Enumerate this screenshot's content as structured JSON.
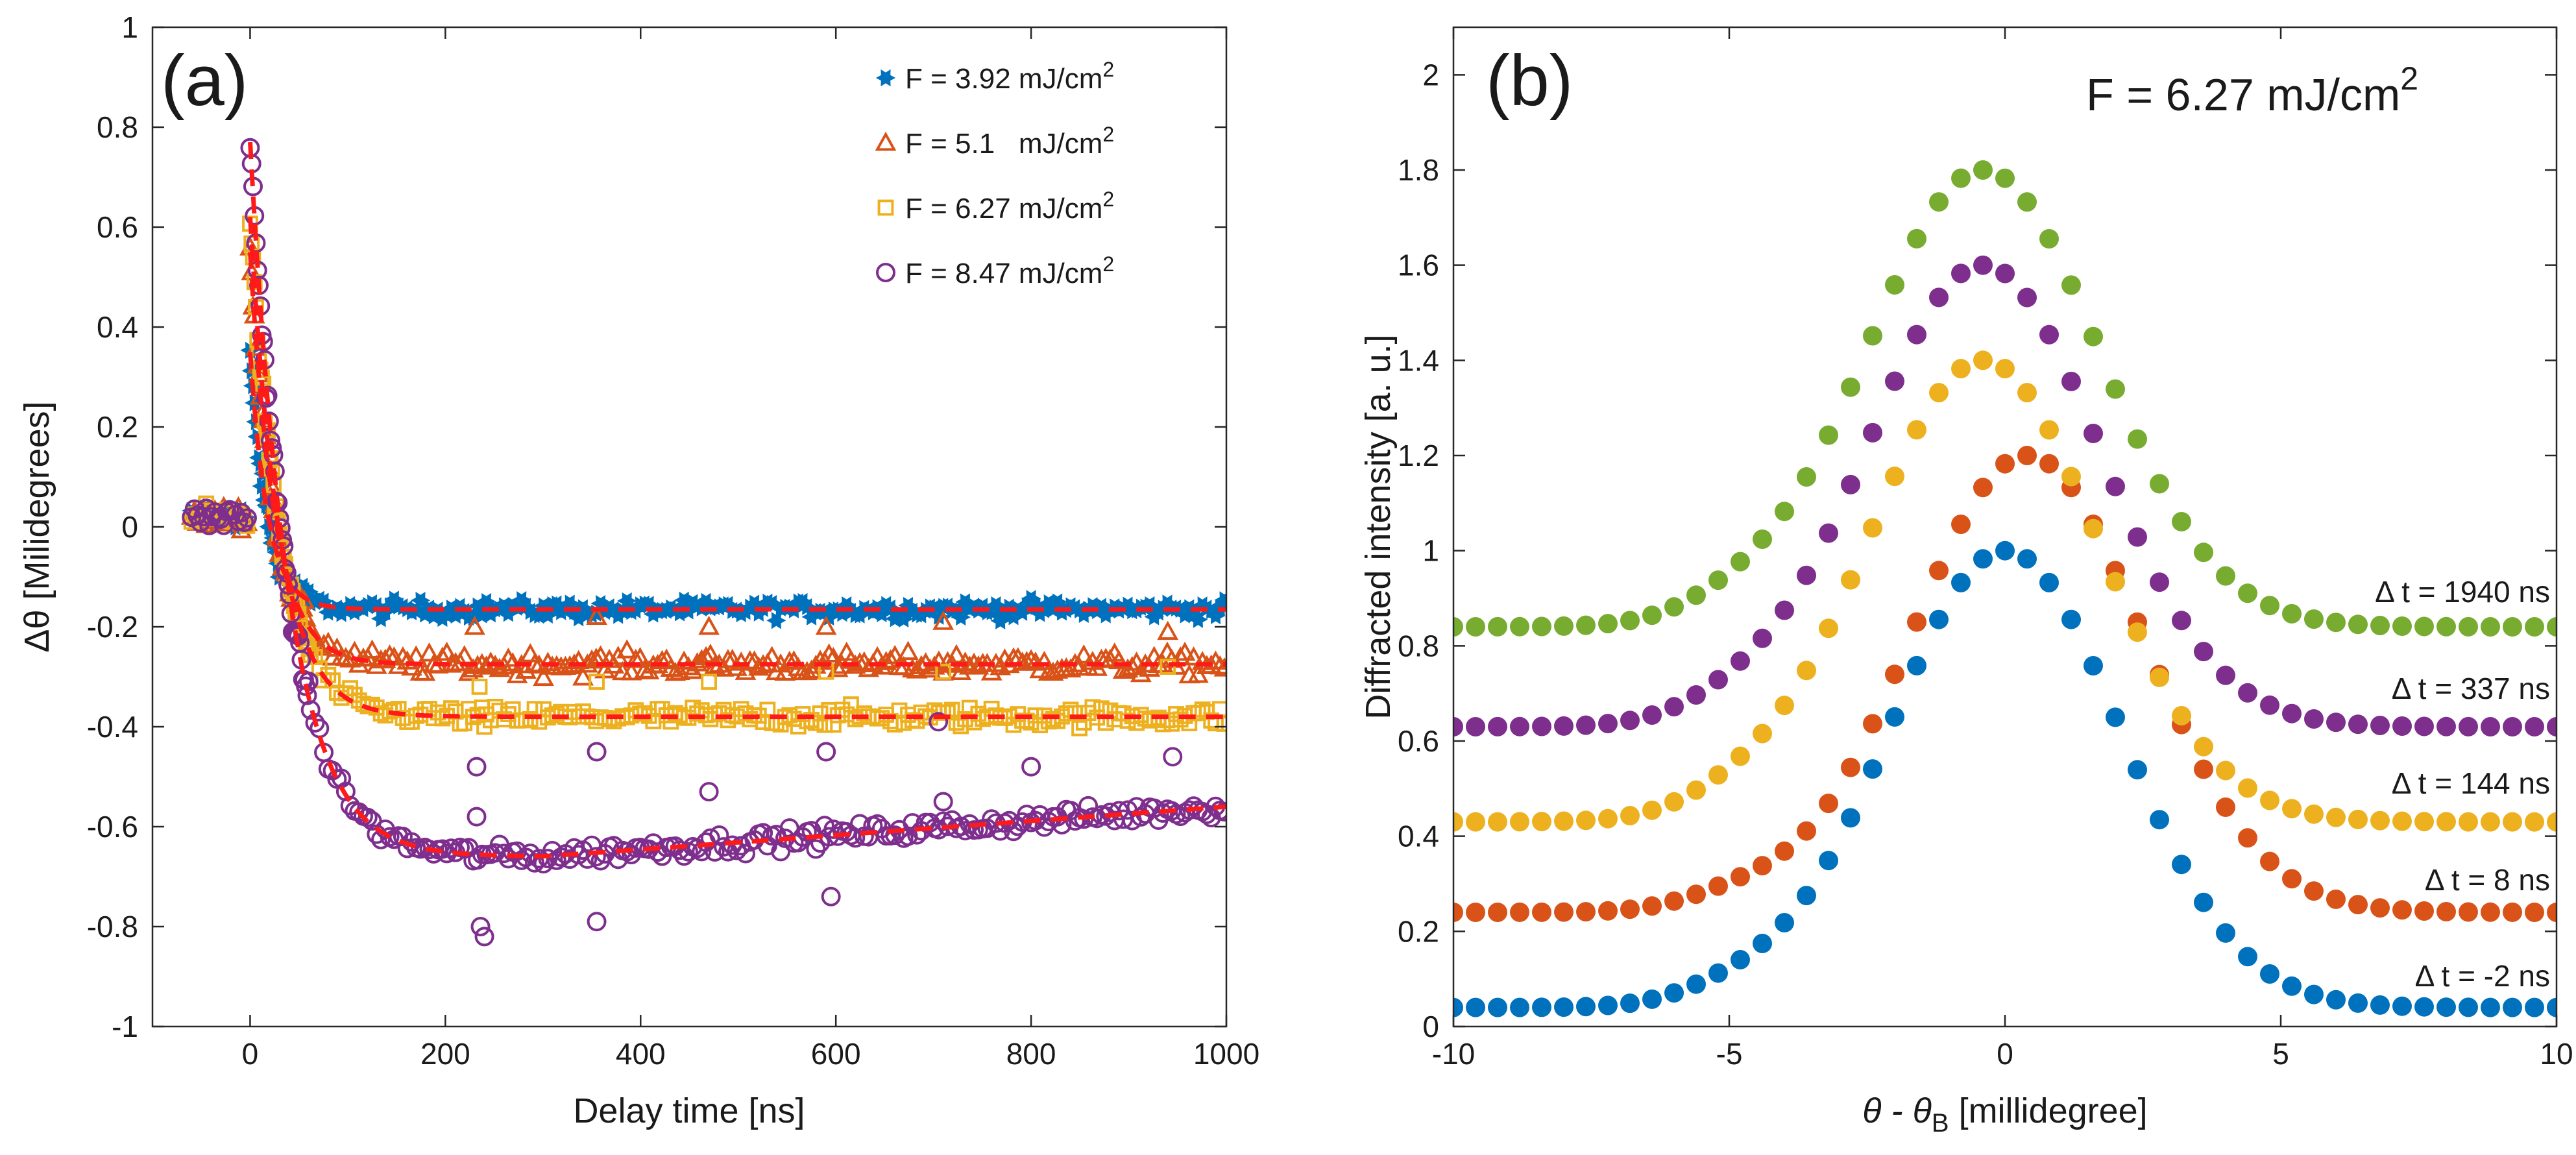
{
  "chart_data": [
    {
      "type": "scatter",
      "panel_label": "(a)",
      "xlabel": "Delay time [ns]",
      "ylabel": "Δθ [Milidegrees]",
      "xlim": [
        -100,
        1000
      ],
      "ylim": [
        -1,
        1
      ],
      "xticks": [
        0,
        200,
        400,
        600,
        800,
        1000
      ],
      "yticks": [
        -1,
        -0.8,
        -0.6,
        -0.4,
        -0.2,
        0,
        0.2,
        0.4,
        0.6,
        0.8,
        1
      ],
      "xtick_labels": [
        "0",
        "200",
        "400",
        "600",
        "800",
        "1000"
      ],
      "ytick_labels": [
        "-1",
        "-0.8",
        "-0.6",
        "-0.4",
        "-0.2",
        "0",
        "0.2",
        "0.4",
        "0.6",
        "0.8",
        "1"
      ],
      "legend_position": "top-right",
      "fit_style": "red dashed",
      "fit_color": "#ff1a1a",
      "series": [
        {
          "name": "F = 3.92 mJ/cm",
          "sup": "2",
          "marker": "star",
          "color": "#0072bd",
          "peak": 0.35,
          "tau1": 18,
          "final": -0.165,
          "rise": 0,
          "tau2": 1,
          "noise": 0.018,
          "outliers": []
        },
        {
          "name": "F = 5.1   mJ/cm",
          "sup": "2",
          "marker": "triangle",
          "color": "#d95319",
          "peak": 0.55,
          "tau1": 25,
          "final": -0.275,
          "rise": 0,
          "tau2": 1,
          "noise": 0.022,
          "outliers": [
            [
              230,
              -0.2
            ],
            [
              355,
              -0.18
            ],
            [
              470,
              -0.2
            ],
            [
              590,
              -0.2
            ],
            [
              710,
              -0.19
            ],
            [
              940,
              -0.21
            ]
          ]
        },
        {
          "name": "F = 6.27 mJ/cm",
          "sup": "2",
          "marker": "square",
          "color": "#edb120",
          "peak": 0.62,
          "tau1": 30,
          "final": -0.38,
          "rise": 0,
          "tau2": 1,
          "noise": 0.02,
          "outliers": [
            [
              235,
              -0.32
            ],
            [
              240,
              -0.4
            ],
            [
              355,
              -0.31
            ],
            [
              470,
              -0.31
            ],
            [
              590,
              -0.29
            ],
            [
              710,
              -0.29
            ],
            [
              940,
              -0.28
            ]
          ]
        },
        {
          "name": "F = 8.47 mJ/cm",
          "sup": "2",
          "marker": "circle",
          "color": "#7e2f8e",
          "peak": 0.77,
          "tau1": 40,
          "final": -0.66,
          "rise": 0.1,
          "tau2": 700,
          "noise": 0.02,
          "outliers": [
            [
              232,
              -0.58
            ],
            [
              236,
              -0.8
            ],
            [
              240,
              -0.82
            ],
            [
              232,
              -0.48
            ],
            [
              355,
              -0.45
            ],
            [
              355,
              -0.79
            ],
            [
              470,
              -0.53
            ],
            [
              590,
              -0.45
            ],
            [
              595,
              -0.74
            ],
            [
              710,
              -0.55
            ],
            [
              705,
              -0.39
            ],
            [
              800,
              -0.48
            ],
            [
              945,
              -0.46
            ]
          ]
        }
      ]
    },
    {
      "type": "scatter",
      "panel_label": "(b)",
      "title": "F = 6.27 mJ/cm",
      "title_sup": "2",
      "xlabel": "θ - θ",
      "xlabel_sub": "B",
      "xlabel_suffix": " [millidegree]",
      "ylabel": "Diffracted intensity [a. u.]",
      "xlim": [
        -10,
        10
      ],
      "ylim": [
        0,
        2.1
      ],
      "xticks": [
        -10,
        -5,
        0,
        5,
        10
      ],
      "yticks": [
        0,
        0.2,
        0.4,
        0.6,
        0.8,
        1,
        1.2,
        1.4,
        1.6,
        1.8,
        2
      ],
      "xtick_labels": [
        "-10",
        "-5",
        "0",
        "5",
        "10"
      ],
      "ytick_labels": [
        "0",
        "0.2",
        "0.4",
        "0.6",
        "0.8",
        "1",
        "1.2",
        "1.4",
        "1.6",
        "1.8",
        "2"
      ],
      "series": [
        {
          "name": "Δ t = -2 ns",
          "color": "#0072bd",
          "baseline": 0.04,
          "peak": 1.0,
          "center": 0.0
        },
        {
          "name": "Δ t = 8 ns",
          "color": "#d95319",
          "baseline": 0.24,
          "peak": 1.2,
          "center": 0.4
        },
        {
          "name": "Δ t = 144 ns",
          "color": "#edb120",
          "baseline": 0.43,
          "peak": 1.4,
          "center": -0.4
        },
        {
          "name": "Δ t = 337 ns",
          "color": "#7e2f8e",
          "baseline": 0.63,
          "peak": 1.6,
          "center": -0.4
        },
        {
          "name": "Δ t = 1940 ns",
          "color": "#77ac30",
          "baseline": 0.84,
          "peak": 1.8,
          "center": -0.4
        }
      ]
    }
  ]
}
